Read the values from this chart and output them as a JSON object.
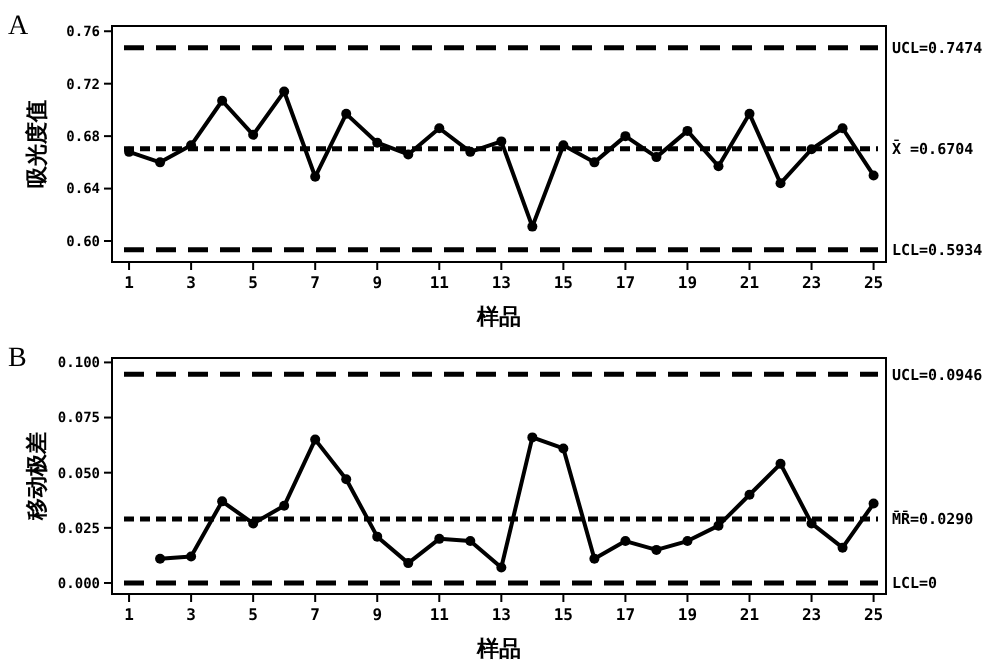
{
  "chart_data": [
    {
      "type": "line",
      "title": "A",
      "xlabel": "样品",
      "ylabel": "吸光度值",
      "x": [
        1,
        2,
        3,
        4,
        5,
        6,
        7,
        8,
        9,
        10,
        11,
        12,
        13,
        14,
        15,
        16,
        17,
        18,
        19,
        20,
        21,
        22,
        23,
        24,
        25
      ],
      "series": [
        {
          "color": "#000000",
          "values": [
            0.668,
            0.66,
            0.673,
            0.707,
            0.681,
            0.714,
            0.649,
            0.697,
            0.675,
            0.666,
            0.686,
            0.668,
            0.676,
            0.611,
            0.673,
            0.66,
            0.68,
            0.664,
            0.684,
            0.657,
            0.697,
            0.644,
            0.67,
            0.686,
            0.65
          ]
        }
      ],
      "xlim": [
        0.45,
        25.4
      ],
      "xticks": [
        1,
        3,
        5,
        7,
        9,
        11,
        13,
        15,
        17,
        19,
        21,
        23,
        25
      ],
      "ylim": [
        0.584,
        0.764
      ],
      "yticks": [
        {
          "value": 0.6,
          "label": "0.60"
        },
        0.64,
        0.68,
        0.72,
        0.76
      ],
      "marker": "circle",
      "line_style": "solid",
      "grid": false,
      "ref_lines": [
        {
          "axis": "y",
          "value": 0.7474,
          "label": "UCL=0.7474",
          "line_style": "dashed",
          "color": "#000000"
        },
        {
          "axis": "y",
          "value": 0.6704,
          "label": "X̄ =0.6704",
          "line_style": "dotted",
          "color": "#000000"
        },
        {
          "axis": "y",
          "value": 0.5934,
          "label": "LCL=0.5934",
          "line_style": "dashed",
          "color": "#000000"
        }
      ]
    },
    {
      "type": "line",
      "title": "B",
      "xlabel": "样品",
      "ylabel": "移动极差",
      "x": [
        2,
        3,
        4,
        5,
        6,
        7,
        8,
        9,
        10,
        11,
        12,
        13,
        14,
        15,
        16,
        17,
        18,
        19,
        20,
        21,
        22,
        23,
        24,
        25
      ],
      "series": [
        {
          "color": "#000000",
          "values": [
            0.011,
            0.012,
            0.037,
            0.027,
            0.035,
            0.065,
            0.047,
            0.021,
            0.009,
            0.02,
            0.019,
            0.007,
            0.066,
            0.061,
            0.011,
            0.019,
            0.015,
            0.019,
            0.026,
            0.04,
            0.054,
            0.027,
            0.016,
            0.036
          ]
        }
      ],
      "xlim": [
        0.45,
        25.4
      ],
      "xticks": [
        1,
        3,
        5,
        7,
        9,
        11,
        13,
        15,
        17,
        19,
        21,
        23,
        25
      ],
      "ylim": [
        -0.005,
        0.102
      ],
      "yticks": [
        {
          "value": 0,
          "label": "0.000"
        },
        0.025,
        {
          "value": 0.05,
          "label": "0.050"
        },
        0.075,
        {
          "value": 0.1,
          "label": "0.100"
        }
      ],
      "marker": "circle",
      "line_style": "solid",
      "grid": false,
      "ref_lines": [
        {
          "axis": "y",
          "value": 0.0946,
          "label": "UCL=0.0946",
          "line_style": "dashed",
          "color": "#000000"
        },
        {
          "axis": "y",
          "value": 0.029,
          "label": "M̄R̄=0.0290",
          "line_style": "dotted",
          "color": "#000000"
        },
        {
          "axis": "y",
          "value": 0,
          "label": "LCL=0",
          "line_style": "dashed",
          "color": "#000000"
        }
      ]
    }
  ]
}
